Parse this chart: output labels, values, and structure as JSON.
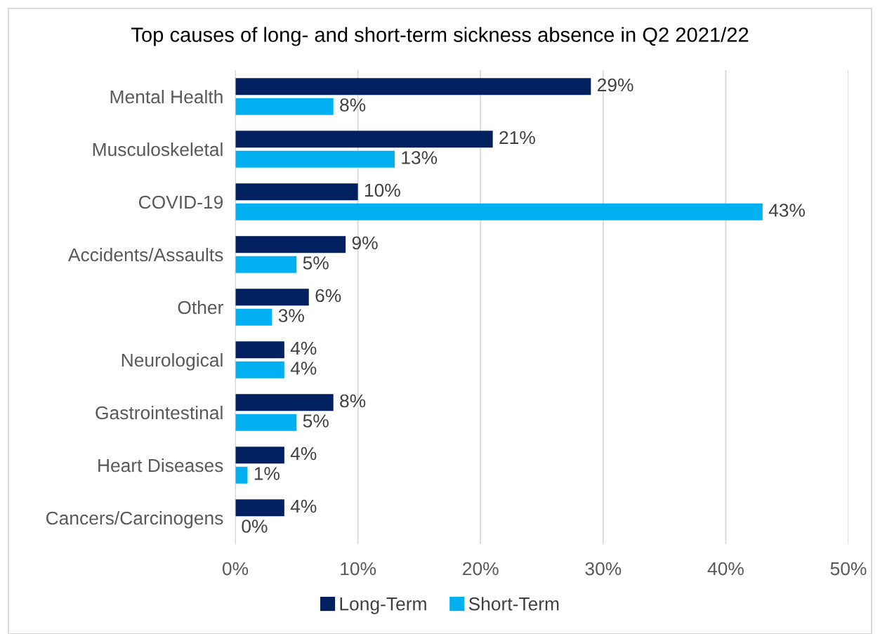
{
  "chart_data": {
    "type": "bar",
    "orientation": "horizontal",
    "title": "Top causes of long- and short-term sickness absence in Q2 2021/22",
    "categories": [
      "Mental Health",
      "Musculoskeletal",
      "COVID-19",
      "Accidents/Assaults",
      "Other",
      "Neurological",
      "Gastrointestinal",
      "Heart Diseases",
      "Cancers/Carcinogens"
    ],
    "series": [
      {
        "name": "Long-Term",
        "color": "#002060",
        "values": [
          29,
          21,
          10,
          9,
          6,
          4,
          8,
          4,
          4
        ],
        "value_labels": [
          "29%",
          "21%",
          "10%",
          "9%",
          "6%",
          "4%",
          "8%",
          "4%",
          "4%"
        ]
      },
      {
        "name": "Short-Term",
        "color": "#00b0f0",
        "values": [
          8,
          13,
          43,
          5,
          3,
          4,
          5,
          1,
          0
        ],
        "value_labels": [
          "8%",
          "13%",
          "43%",
          "5%",
          "3%",
          "4%",
          "5%",
          "1%",
          "0%"
        ]
      }
    ],
    "xlim": [
      0,
      50
    ],
    "xticks": [
      {
        "value": 0,
        "label": "0%"
      },
      {
        "value": 10,
        "label": "10%"
      },
      {
        "value": 20,
        "label": "20%"
      },
      {
        "value": 30,
        "label": "30%"
      },
      {
        "value": 40,
        "label": "40%"
      },
      {
        "value": 50,
        "label": "50%"
      }
    ],
    "grid": "x",
    "legend": "bottom"
  }
}
